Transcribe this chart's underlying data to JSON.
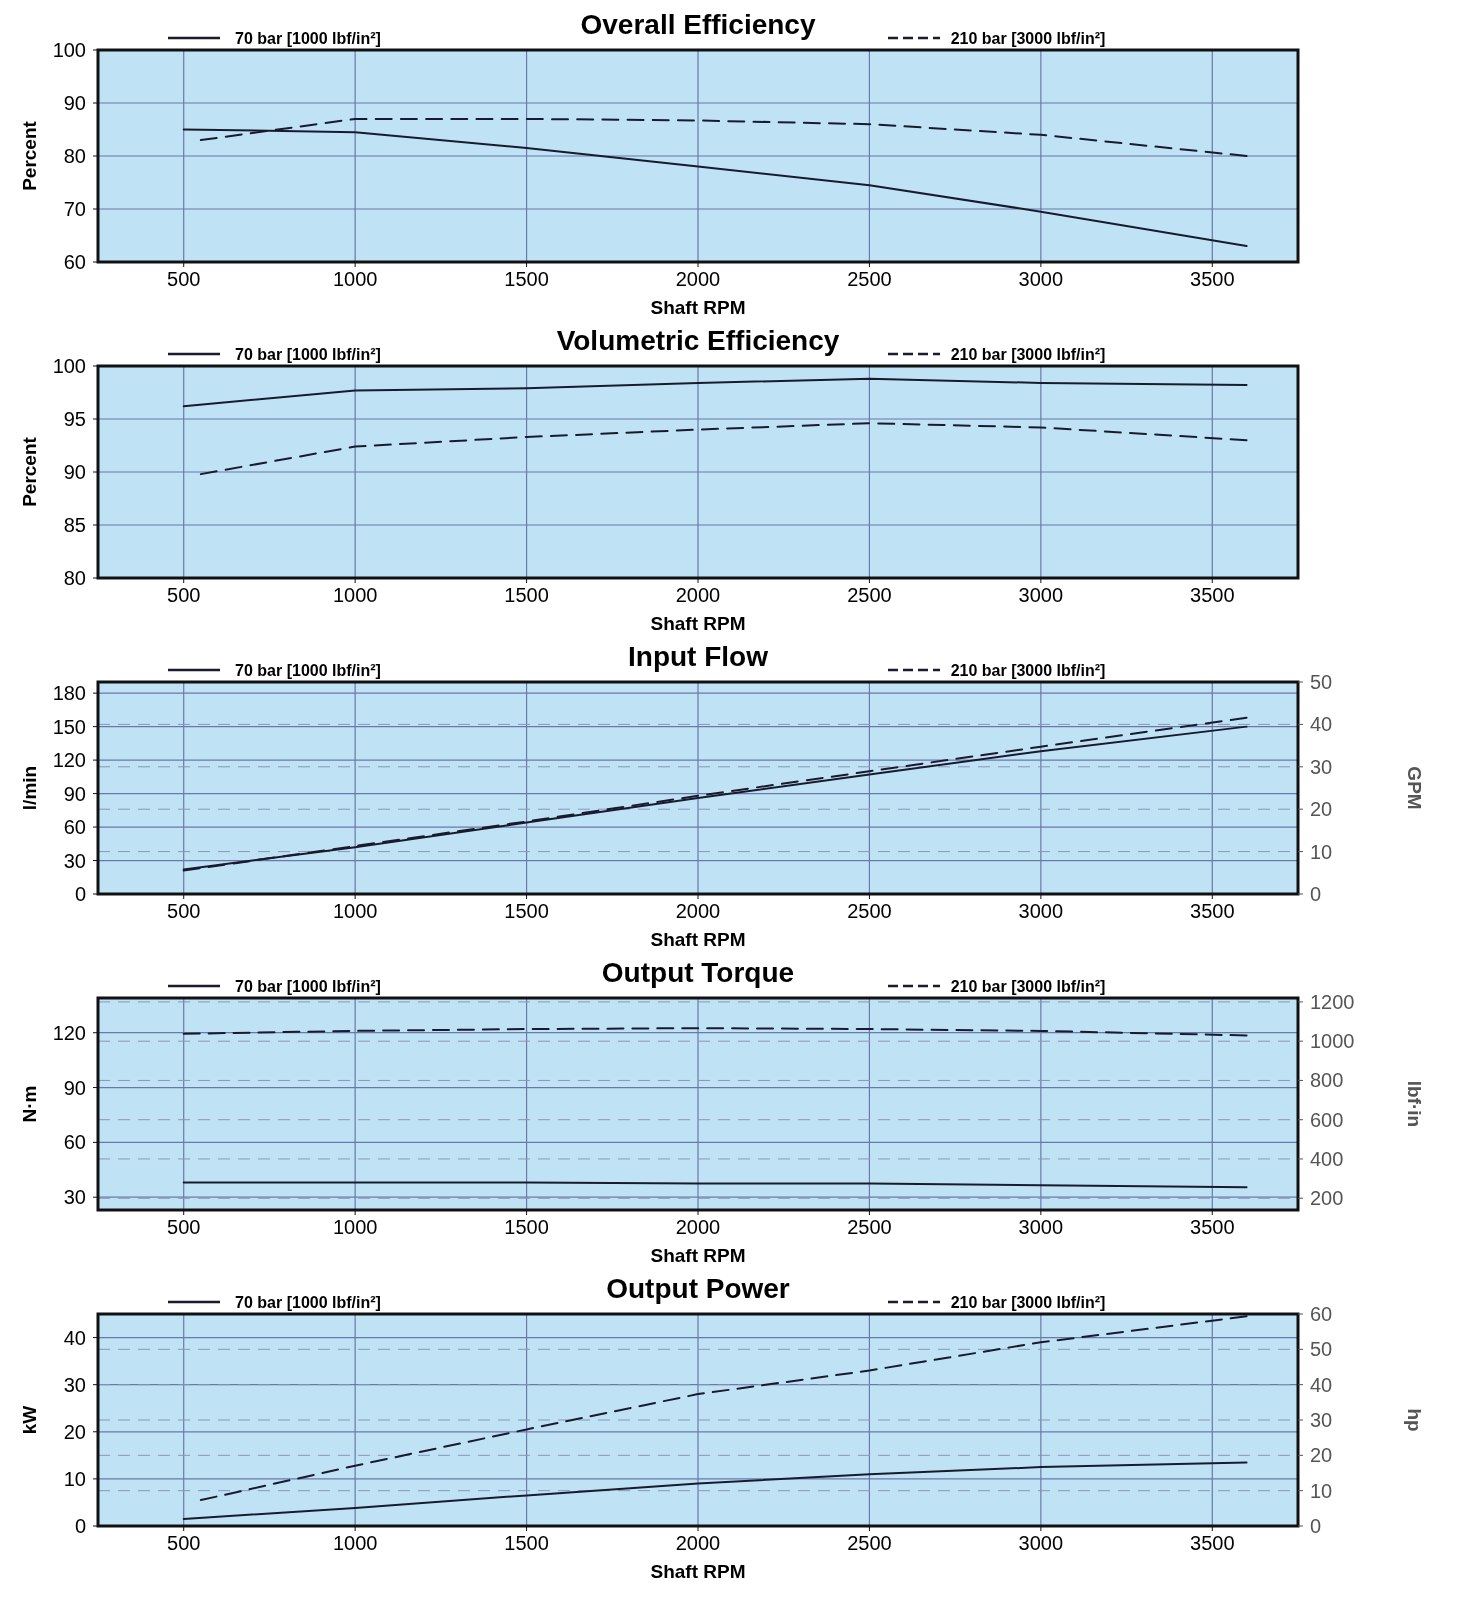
{
  "chart_data": [
    {
      "type": "line",
      "title": "Overall Efficiency",
      "xlabel": "Shaft RPM",
      "ylabel": "Percent",
      "xlim": [
        250,
        3750
      ],
      "xticks": [
        500,
        1000,
        1500,
        2000,
        2500,
        3000,
        3500
      ],
      "ylim": [
        60,
        100
      ],
      "yticks": [
        60,
        70,
        80,
        90,
        100
      ],
      "grid": true,
      "legend": "top",
      "series": [
        {
          "name": "70 bar [1000 lbf/in²]",
          "color": "#1a1a2e",
          "line_style": "solid",
          "x": [
            500,
            1000,
            1500,
            2000,
            2500,
            3000,
            3600
          ],
          "values": [
            85,
            84.5,
            81.5,
            78,
            74.5,
            69.5,
            63
          ]
        },
        {
          "name": "210 bar [3000 lbf/in²]",
          "color": "#1a1a2e",
          "line_style": "dashed",
          "x": [
            550,
            1000,
            1500,
            2000,
            2500,
            3000,
            3600
          ],
          "values": [
            83,
            87,
            87,
            86.7,
            86,
            84,
            80
          ]
        }
      ]
    },
    {
      "type": "line",
      "title": "Volumetric Efficiency",
      "xlabel": "Shaft RPM",
      "ylabel": "Percent",
      "xlim": [
        250,
        3750
      ],
      "xticks": [
        500,
        1000,
        1500,
        2000,
        2500,
        3000,
        3500
      ],
      "ylim": [
        80,
        100
      ],
      "yticks": [
        80,
        85,
        90,
        95,
        100
      ],
      "grid": true,
      "legend": "top",
      "series": [
        {
          "name": "70 bar [1000 lbf/in²]",
          "color": "#1a1a2e",
          "line_style": "solid",
          "x": [
            500,
            1000,
            1500,
            2000,
            2500,
            3000,
            3600
          ],
          "values": [
            96.2,
            97.7,
            97.9,
            98.4,
            98.8,
            98.4,
            98.2
          ]
        },
        {
          "name": "210 bar [3000 lbf/in²]",
          "color": "#1a1a2e",
          "line_style": "dashed",
          "x": [
            550,
            1000,
            1500,
            2000,
            2500,
            3000,
            3600
          ],
          "values": [
            89.8,
            92.4,
            93.3,
            94,
            94.6,
            94.2,
            93
          ]
        }
      ]
    },
    {
      "type": "line",
      "title": "Input Flow",
      "xlabel": "Shaft RPM",
      "ylabel": "l/min",
      "y2label": "GPM",
      "xlim": [
        250,
        3750
      ],
      "xticks": [
        500,
        1000,
        1500,
        2000,
        2500,
        3000,
        3500
      ],
      "ylim": [
        0,
        190
      ],
      "yticks": [
        0,
        30,
        60,
        90,
        120,
        150,
        180
      ],
      "y2lim": [
        0,
        50
      ],
      "y2ticks": [
        0,
        10,
        20,
        30,
        40,
        50
      ],
      "grid": true,
      "legend": "top",
      "series": [
        {
          "name": "70 bar [1000 lbf/in²]",
          "color": "#1a1a2e",
          "line_style": "solid",
          "x": [
            500,
            1000,
            1500,
            2000,
            2500,
            3000,
            3600
          ],
          "values": [
            22,
            42,
            64,
            86,
            107,
            128,
            150
          ]
        },
        {
          "name": "210 bar [3000 lbf/in²]",
          "color": "#1a1a2e",
          "line_style": "dashed",
          "x": [
            500,
            1000,
            1500,
            2000,
            2500,
            3000,
            3600
          ],
          "values": [
            21,
            43,
            65,
            88,
            110,
            132,
            158
          ]
        }
      ]
    },
    {
      "type": "line",
      "title": "Output Torque",
      "xlabel": "Shaft RPM",
      "ylabel": "N·m",
      "y2label": "lbf·in",
      "xlim": [
        250,
        3750
      ],
      "xticks": [
        500,
        1000,
        1500,
        2000,
        2500,
        3000,
        3500
      ],
      "ylim": [
        23,
        139
      ],
      "yticks": [
        30,
        60,
        90,
        120
      ],
      "y2lim": [
        140,
        1220
      ],
      "y2ticks": [
        200,
        400,
        600,
        800,
        1000,
        1200
      ],
      "grid": true,
      "legend": "top",
      "series": [
        {
          "name": "70 bar [1000 lbf/in²]",
          "color": "#1a1a2e",
          "line_style": "solid",
          "x": [
            500,
            1000,
            1500,
            2000,
            2500,
            3000,
            3600
          ],
          "values": [
            38,
            38,
            38,
            37.5,
            37.5,
            36.5,
            35.5
          ]
        },
        {
          "name": "210 bar [3000 lbf/in²]",
          "color": "#1a1a2e",
          "line_style": "dashed",
          "x": [
            500,
            1000,
            1500,
            2000,
            2500,
            3000,
            3600
          ],
          "values": [
            119.4,
            121,
            122,
            122.5,
            122,
            121,
            118.5
          ]
        }
      ]
    },
    {
      "type": "line",
      "title": "Output Power",
      "xlabel": "Shaft RPM",
      "ylabel": "kW",
      "y2label": "hp",
      "xlim": [
        250,
        3750
      ],
      "xticks": [
        500,
        1000,
        1500,
        2000,
        2500,
        3000,
        3500
      ],
      "ylim": [
        0,
        45
      ],
      "yticks": [
        0,
        10,
        20,
        30,
        40
      ],
      "y2lim": [
        0,
        60
      ],
      "y2ticks": [
        0,
        10,
        20,
        30,
        40,
        50,
        60
      ],
      "grid": true,
      "legend": "top",
      "series": [
        {
          "name": "70 bar [1000 lbf/in²]",
          "color": "#1a1a2e",
          "line_style": "solid",
          "x": [
            500,
            1000,
            1500,
            2000,
            2500,
            3000,
            3600
          ],
          "values": [
            1.5,
            3.8,
            6.5,
            9,
            11,
            12.5,
            13.5
          ]
        },
        {
          "name": "210 bar [3000 lbf/in²]",
          "color": "#1a1a2e",
          "line_style": "dashed",
          "x": [
            550,
            1000,
            1500,
            2000,
            2500,
            3000,
            3600
          ],
          "values": [
            5.5,
            12.8,
            20.5,
            28,
            33,
            39,
            44.5
          ]
        }
      ]
    }
  ]
}
